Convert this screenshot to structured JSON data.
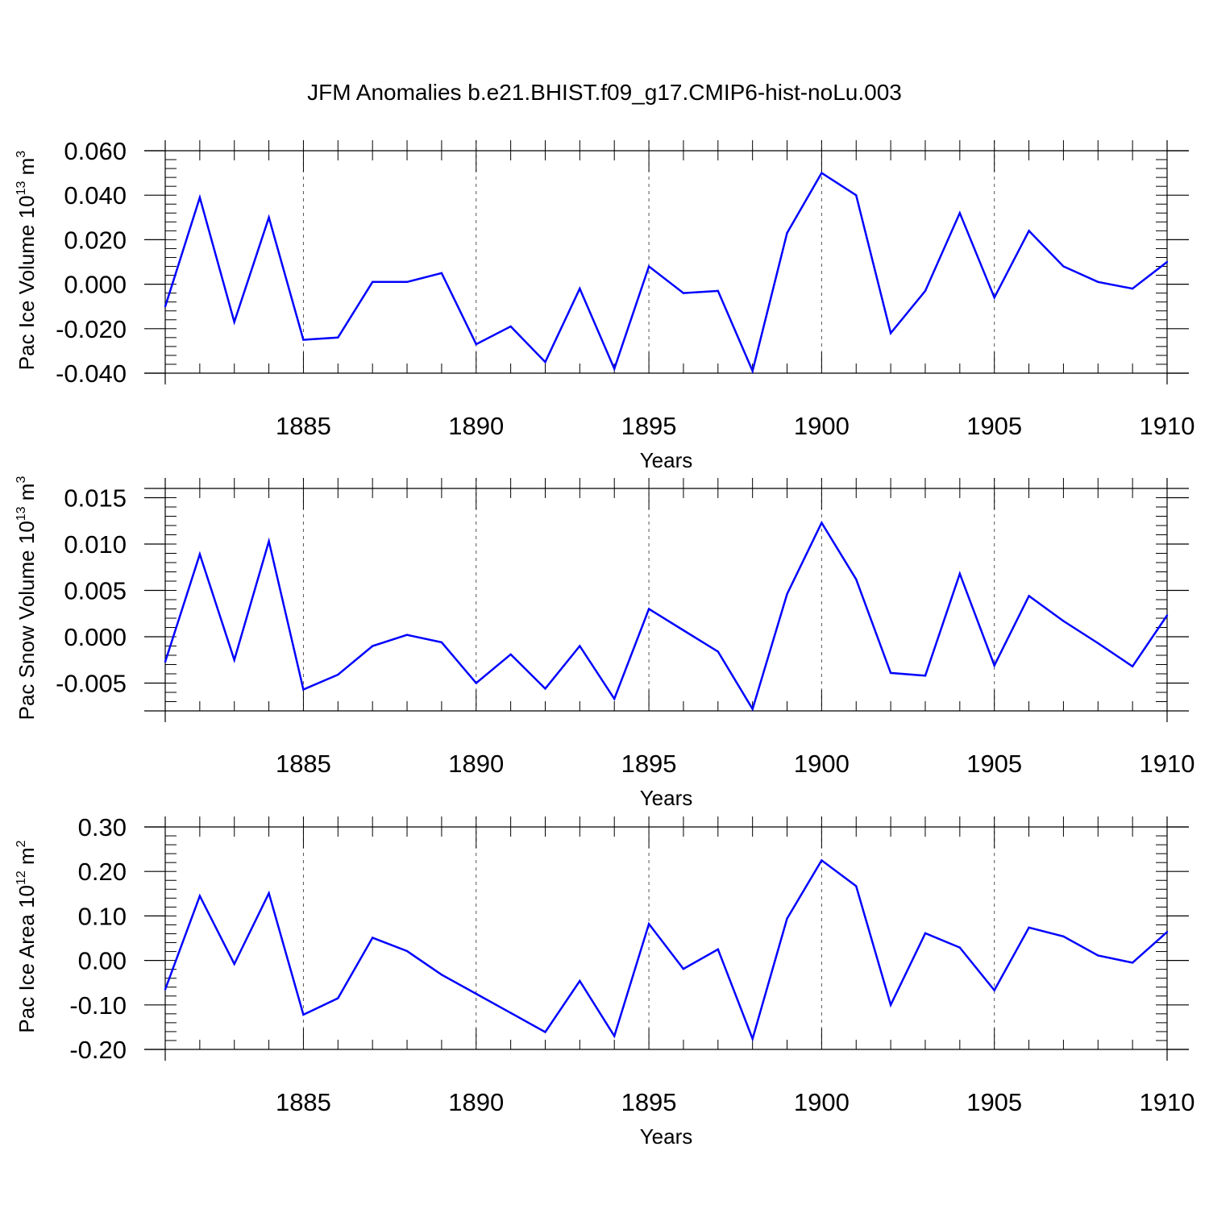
{
  "title": "JFM Anomalies b.e21.BHIST.f09_g17.CMIP6-hist-noLu.003",
  "colors": {
    "series": "#0000ff",
    "axes": "#000000",
    "grid": "#555555"
  },
  "chart_data": [
    {
      "type": "line",
      "title": "JFM Anomalies b.e21.BHIST.f09_g17.CMIP6-hist-noLu.003",
      "xlabel": "Years",
      "ylabel": {
        "text": "Pac Ice Volume 10",
        "sup": "13",
        "unit": " m",
        "unit_sup": "3"
      },
      "x": [
        1881,
        1882,
        1883,
        1884,
        1885,
        1886,
        1887,
        1888,
        1889,
        1890,
        1891,
        1892,
        1893,
        1894,
        1895,
        1896,
        1897,
        1898,
        1899,
        1900,
        1901,
        1902,
        1903,
        1904,
        1905,
        1906,
        1907,
        1908,
        1909,
        1910
      ],
      "y": [
        -0.01,
        0.039,
        -0.017,
        0.03,
        -0.025,
        -0.024,
        0.001,
        0.001,
        0.005,
        -0.027,
        -0.019,
        -0.035,
        -0.002,
        -0.038,
        0.008,
        -0.004,
        -0.003,
        -0.039,
        0.023,
        0.05,
        0.04,
        -0.022,
        -0.003,
        0.032,
        -0.006,
        0.024,
        0.008,
        0.001,
        -0.002,
        0.01
      ],
      "xlim": [
        1881,
        1910
      ],
      "ylim": [
        -0.04,
        0.06
      ],
      "yticks": [
        -0.04,
        -0.02,
        0.0,
        0.02,
        0.04,
        0.06
      ],
      "ytick_labels": [
        "-0.040",
        "-0.020",
        "0.000",
        "0.020",
        "0.040",
        "0.060"
      ],
      "yminor_step": 0.004,
      "xticks": [
        1885,
        1890,
        1895,
        1900,
        1905,
        1910
      ],
      "xtick_labels": [
        "1885",
        "1890",
        "1895",
        "1900",
        "1905",
        "1910"
      ],
      "grid": "vertical dashed at major x ticks"
    },
    {
      "type": "line",
      "xlabel": "Years",
      "ylabel": {
        "text": "Pac Snow Volume 10",
        "sup": "13",
        "unit": " m",
        "unit_sup": "3"
      },
      "x": [
        1881,
        1882,
        1883,
        1884,
        1885,
        1886,
        1887,
        1888,
        1889,
        1890,
        1891,
        1892,
        1893,
        1894,
        1895,
        1896,
        1897,
        1898,
        1899,
        1900,
        1901,
        1902,
        1903,
        1904,
        1905,
        1906,
        1907,
        1908,
        1909,
        1910
      ],
      "y": [
        -0.0027,
        0.0089,
        -0.0025,
        0.0103,
        -0.0057,
        -0.0041,
        -0.001,
        0.0002,
        -0.0006,
        -0.005,
        -0.0019,
        -0.0056,
        -0.001,
        -0.0067,
        0.003,
        0.0007,
        -0.0016,
        -0.0078,
        0.0046,
        0.0123,
        0.0062,
        -0.0039,
        -0.0042,
        0.0068,
        -0.0031,
        0.0044,
        0.0017,
        -0.0007,
        -0.0032,
        0.0023
      ],
      "xlim": [
        1881,
        1910
      ],
      "ylim": [
        -0.008,
        0.016
      ],
      "yticks": [
        -0.005,
        0.0,
        0.005,
        0.01,
        0.015
      ],
      "ytick_labels": [
        "-0.005",
        "0.000",
        "0.005",
        "0.010",
        "0.015"
      ],
      "yminor_step": 0.001,
      "xticks": [
        1885,
        1890,
        1895,
        1900,
        1905,
        1910
      ],
      "xtick_labels": [
        "1885",
        "1890",
        "1895",
        "1900",
        "1905",
        "1910"
      ],
      "grid": "vertical dashed at major x ticks"
    },
    {
      "type": "line",
      "xlabel": "Years",
      "ylabel": {
        "text": "Pac Ice Area 10",
        "sup": "12",
        "unit": " m",
        "unit_sup": "2"
      },
      "x": [
        1881,
        1882,
        1883,
        1884,
        1885,
        1886,
        1887,
        1888,
        1889,
        1890,
        1891,
        1892,
        1893,
        1894,
        1895,
        1896,
        1897,
        1898,
        1899,
        1900,
        1901,
        1902,
        1903,
        1904,
        1905,
        1906,
        1907,
        1908,
        1909,
        1910
      ],
      "y": [
        -0.065,
        0.145,
        -0.008,
        0.151,
        -0.122,
        -0.085,
        0.051,
        0.021,
        -0.032,
        -0.075,
        -0.118,
        -0.161,
        -0.046,
        -0.17,
        0.082,
        -0.019,
        0.025,
        -0.176,
        0.094,
        0.225,
        0.167,
        -0.1,
        0.061,
        0.029,
        -0.067,
        0.074,
        0.054,
        0.011,
        -0.005,
        0.064
      ],
      "xlim": [
        1881,
        1910
      ],
      "ylim": [
        -0.2,
        0.3
      ],
      "yticks": [
        -0.2,
        -0.1,
        0.0,
        0.1,
        0.2,
        0.3
      ],
      "ytick_labels": [
        "-0.20",
        "-0.10",
        "0.00",
        "0.10",
        "0.20",
        "0.30"
      ],
      "yminor_step": 0.02,
      "xticks": [
        1885,
        1890,
        1895,
        1900,
        1905,
        1910
      ],
      "xtick_labels": [
        "1885",
        "1890",
        "1895",
        "1900",
        "1905",
        "1910"
      ],
      "grid": "vertical dashed at major x ticks"
    }
  ]
}
